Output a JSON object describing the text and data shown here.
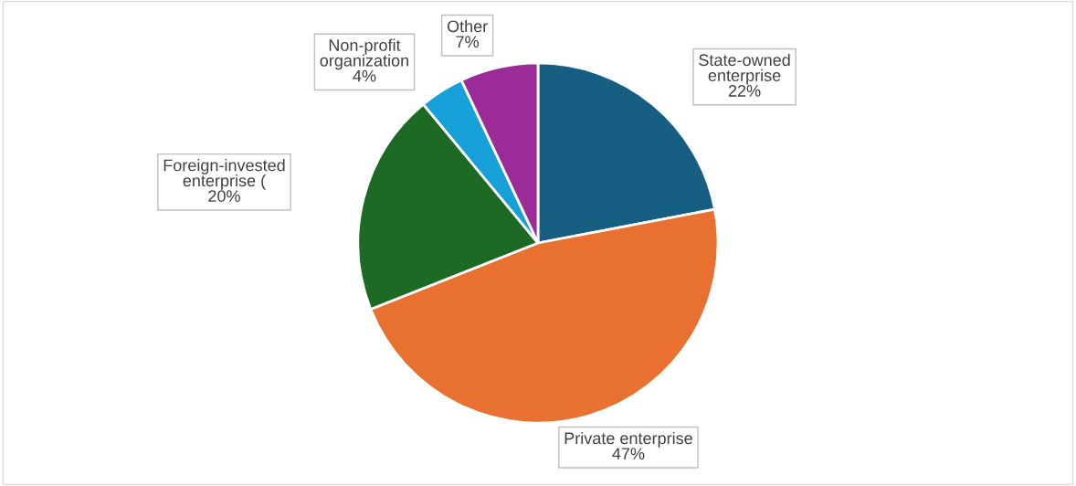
{
  "chart_data": {
    "type": "pie",
    "categories": [
      "State-owned enterprise",
      "Private enterprise",
      "Foreign-invested enterprise (",
      "Non-profit organization",
      "Other"
    ],
    "values": [
      22,
      47,
      20,
      4,
      7
    ],
    "colors": [
      "#175f82",
      "#e87132",
      "#1d6a25",
      "#179fd8",
      "#9b2b96"
    ],
    "value_labels": [
      "22%",
      "47%",
      "20%",
      "4%",
      "7%"
    ]
  }
}
